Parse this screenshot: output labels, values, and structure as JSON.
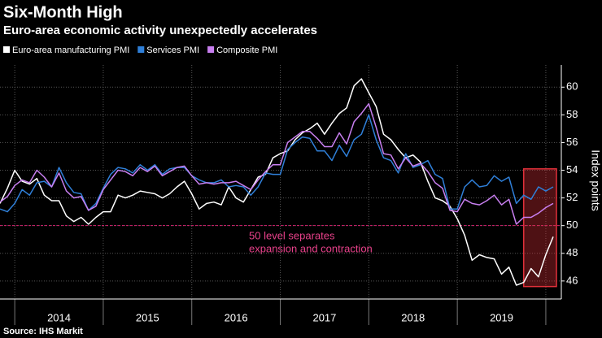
{
  "chart_data": {
    "type": "line",
    "title": "Six-Month High",
    "subtitle": "Euro-area economic activity unexpectedly accelerates",
    "y_label": "Index points",
    "source": "Source: IHS Markit",
    "annotation": [
      "50 level separates",
      "expansion and contraction"
    ],
    "reference_line": {
      "value": 50,
      "color": "#d6216f"
    },
    "highlight": {
      "x": [
        "2019-10",
        "2020-02"
      ],
      "y": [
        45.6,
        54.1
      ],
      "color": "#e0303a"
    },
    "x": [
      "2013-11",
      "2013-12",
      "2014-01",
      "2014-02",
      "2014-03",
      "2014-04",
      "2014-05",
      "2014-06",
      "2014-07",
      "2014-08",
      "2014-09",
      "2014-10",
      "2014-11",
      "2014-12",
      "2015-01",
      "2015-02",
      "2015-03",
      "2015-04",
      "2015-05",
      "2015-06",
      "2015-07",
      "2015-08",
      "2015-09",
      "2015-10",
      "2015-11",
      "2015-12",
      "2016-01",
      "2016-02",
      "2016-03",
      "2016-04",
      "2016-05",
      "2016-06",
      "2016-07",
      "2016-08",
      "2016-09",
      "2016-10",
      "2016-11",
      "2016-12",
      "2017-01",
      "2017-02",
      "2017-03",
      "2017-04",
      "2017-05",
      "2017-06",
      "2017-07",
      "2017-08",
      "2017-09",
      "2017-10",
      "2017-11",
      "2017-12",
      "2018-01",
      "2018-02",
      "2018-03",
      "2018-04",
      "2018-05",
      "2018-06",
      "2018-07",
      "2018-08",
      "2018-09",
      "2018-10",
      "2018-11",
      "2018-12",
      "2019-01",
      "2019-02",
      "2019-03",
      "2019-04",
      "2019-05",
      "2019-06",
      "2019-07",
      "2019-08",
      "2019-09",
      "2019-10",
      "2019-11",
      "2019-12",
      "2020-01",
      "2020-02"
    ],
    "xlim": [
      "2013-11",
      "2020-02"
    ],
    "x_year_labels": [
      "2014",
      "2015",
      "2016",
      "2017",
      "2018",
      "2019"
    ],
    "ylim": [
      44.7,
      61.6
    ],
    "yticks": [
      46,
      48,
      50,
      52,
      54,
      56,
      58,
      60
    ],
    "grid": true,
    "series": [
      {
        "name": "Euro-area manufacturing PMI",
        "color": "#ffffff",
        "values": [
          51.6,
          52.7,
          54.0,
          53.2,
          53.0,
          53.4,
          52.2,
          51.8,
          51.8,
          50.7,
          50.3,
          50.6,
          50.1,
          50.6,
          51.0,
          51.0,
          52.2,
          52.0,
          52.2,
          52.5,
          52.4,
          52.3,
          52.0,
          52.3,
          52.8,
          53.2,
          52.3,
          51.2,
          51.6,
          51.7,
          51.5,
          52.8,
          52.0,
          51.7,
          52.6,
          53.5,
          53.7,
          54.9,
          55.2,
          55.4,
          56.2,
          56.7,
          57.0,
          57.4,
          56.6,
          57.4,
          58.1,
          58.5,
          60.1,
          60.6,
          59.6,
          58.6,
          56.6,
          56.2,
          55.5,
          54.9,
          55.1,
          54.6,
          53.2,
          52.0,
          51.8,
          51.4,
          50.5,
          49.3,
          47.5,
          47.9,
          47.7,
          47.6,
          46.5,
          47.0,
          45.7,
          45.9,
          46.9,
          46.3,
          47.9,
          49.2
        ]
      },
      {
        "name": "Services PMI",
        "color": "#2f7fd8",
        "values": [
          51.2,
          51.0,
          51.6,
          52.6,
          52.2,
          53.1,
          53.2,
          52.8,
          54.2,
          53.1,
          52.4,
          52.3,
          51.1,
          51.6,
          52.7,
          53.7,
          54.2,
          54.1,
          53.8,
          54.4,
          54.0,
          54.4,
          53.7,
          54.1,
          54.2,
          54.2,
          53.6,
          53.3,
          53.1,
          53.1,
          53.3,
          52.8,
          52.9,
          52.8,
          52.2,
          52.8,
          53.8,
          53.7,
          53.7,
          55.5,
          56.0,
          56.4,
          56.3,
          55.4,
          55.4,
          54.7,
          55.8,
          55.0,
          56.2,
          56.6,
          58.0,
          56.2,
          54.9,
          54.7,
          53.8,
          55.2,
          54.2,
          54.4,
          54.7,
          53.7,
          53.4,
          51.2,
          51.2,
          52.8,
          53.3,
          52.8,
          52.9,
          53.6,
          53.2,
          53.5,
          51.6,
          52.2,
          51.9,
          52.8,
          52.5,
          52.8
        ]
      },
      {
        "name": "Composite PMI",
        "color": "#c87ff0",
        "values": [
          51.7,
          52.1,
          52.9,
          53.3,
          53.1,
          54.0,
          53.5,
          52.8,
          53.8,
          52.5,
          52.0,
          52.1,
          51.1,
          51.4,
          52.6,
          53.3,
          54.0,
          53.9,
          53.6,
          54.2,
          53.9,
          54.3,
          53.6,
          53.9,
          54.2,
          54.3,
          53.6,
          53.0,
          53.1,
          53.0,
          53.1,
          53.1,
          53.2,
          52.9,
          52.6,
          53.3,
          53.9,
          54.4,
          54.4,
          56.0,
          56.4,
          56.8,
          56.8,
          56.3,
          55.7,
          55.7,
          56.7,
          55.9,
          57.5,
          58.1,
          58.8,
          57.1,
          55.2,
          55.1,
          54.1,
          54.9,
          54.3,
          54.5,
          53.9,
          53.1,
          52.7,
          51.1,
          51.0,
          51.9,
          51.6,
          51.5,
          51.8,
          52.2,
          51.5,
          51.9,
          50.1,
          50.6,
          50.6,
          50.9,
          51.3,
          51.6
        ]
      }
    ]
  }
}
